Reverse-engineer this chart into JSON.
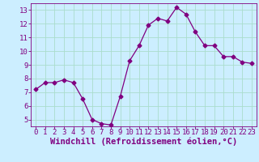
{
  "x": [
    0,
    1,
    2,
    3,
    4,
    5,
    6,
    7,
    8,
    9,
    10,
    11,
    12,
    13,
    14,
    15,
    16,
    17,
    18,
    19,
    20,
    21,
    22,
    23
  ],
  "y": [
    7.2,
    7.7,
    7.7,
    7.9,
    7.7,
    6.5,
    5.0,
    4.7,
    4.6,
    6.7,
    9.3,
    10.4,
    11.9,
    12.4,
    12.2,
    13.2,
    12.7,
    11.4,
    10.4,
    10.4,
    9.6,
    9.6,
    9.2,
    9.1
  ],
  "line_color": "#800080",
  "marker": "D",
  "marker_size": 2.5,
  "bg_color": "#cceeff",
  "grid_color": "#aaddcc",
  "xlabel": "Windchill (Refroidissement éolien,°C)",
  "xlabel_color": "#800080",
  "xlabel_fontsize": 7.5,
  "tick_color": "#800080",
  "tick_fontsize": 6.5,
  "ylim": [
    4.5,
    13.5
  ],
  "xlim": [
    -0.5,
    23.5
  ],
  "yticks": [
    5,
    6,
    7,
    8,
    9,
    10,
    11,
    12,
    13
  ],
  "xticks": [
    0,
    1,
    2,
    3,
    4,
    5,
    6,
    7,
    8,
    9,
    10,
    11,
    12,
    13,
    14,
    15,
    16,
    17,
    18,
    19,
    20,
    21,
    22,
    23
  ]
}
